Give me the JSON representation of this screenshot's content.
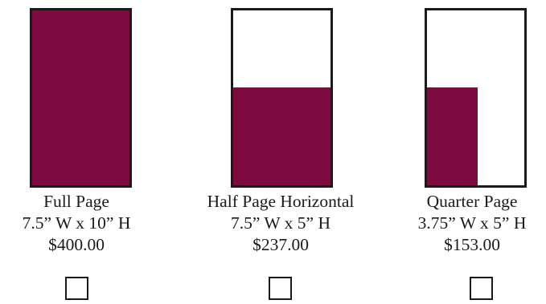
{
  "accent_color": "#7d0b3f",
  "options": [
    {
      "name": "Full Page",
      "dimensions": "7.5” W x 10” H",
      "price": "$400.00",
      "fill_width_fraction": 1.0,
      "fill_height_fraction": 1.0,
      "checked": false
    },
    {
      "name": "Half Page Horizontal",
      "dimensions": "7.5” W x 5” H",
      "price": "$237.00",
      "fill_width_fraction": 1.0,
      "fill_height_fraction": 0.56,
      "checked": false
    },
    {
      "name": "Quarter Page",
      "dimensions": "3.75” W x 5” H",
      "price": "$153.00",
      "fill_width_fraction": 0.52,
      "fill_height_fraction": 0.56,
      "checked": false
    }
  ]
}
